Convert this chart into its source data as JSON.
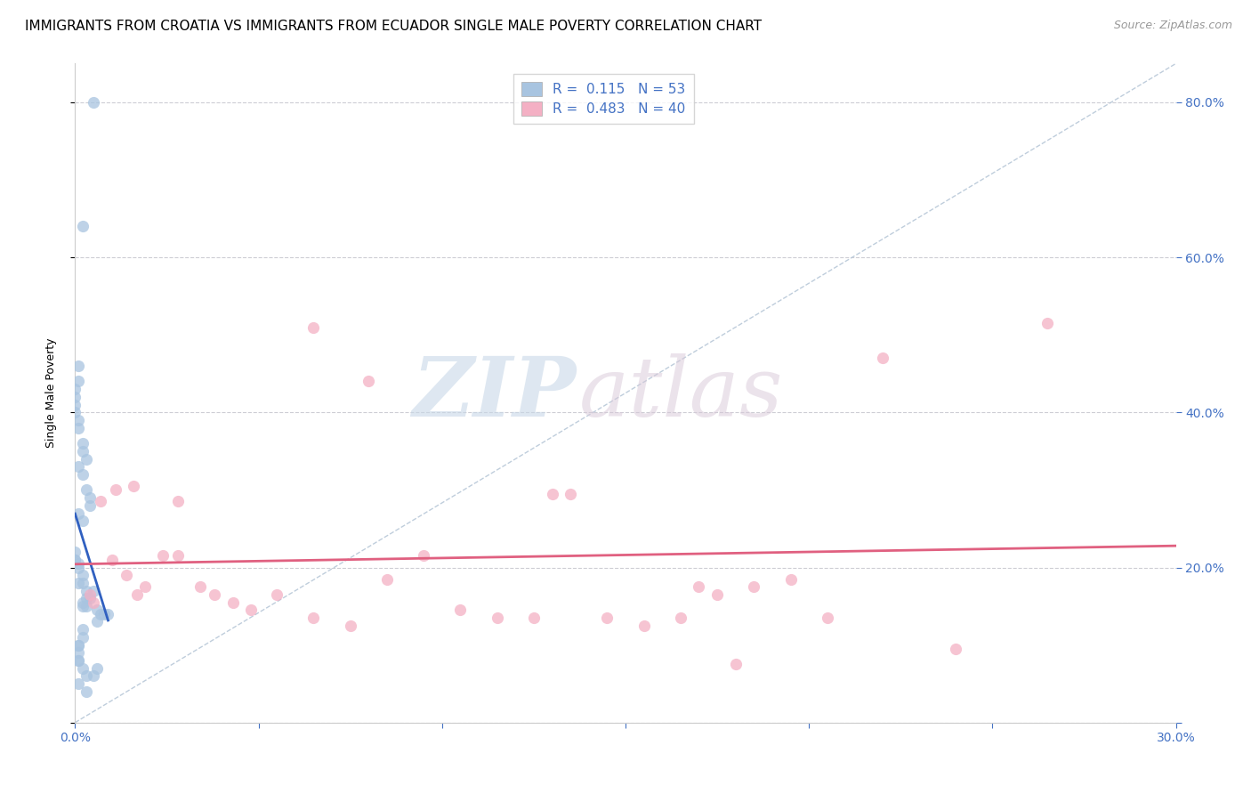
{
  "title": "IMMIGRANTS FROM CROATIA VS IMMIGRANTS FROM ECUADOR SINGLE MALE POVERTY CORRELATION CHART",
  "source": "Source: ZipAtlas.com",
  "ylabel_text": "Single Male Poverty",
  "xlim": [
    0.0,
    0.3
  ],
  "ylim": [
    0.0,
    0.85
  ],
  "x_ticks": [
    0.0,
    0.05,
    0.1,
    0.15,
    0.2,
    0.25,
    0.3
  ],
  "y_ticks": [
    0.0,
    0.2,
    0.4,
    0.6,
    0.8
  ],
  "croatia_R": 0.115,
  "croatia_N": 53,
  "ecuador_R": 0.483,
  "ecuador_N": 40,
  "croatia_color": "#a8c4e0",
  "ecuador_color": "#f4b0c4",
  "croatia_line_color": "#3060c0",
  "ecuador_line_color": "#e06080",
  "diagonal_line_color": "#b8c8d8",
  "croatia_scatter_x": [
    0.005,
    0.002,
    0.001,
    0.001,
    0.0,
    0.0,
    0.0,
    0.0,
    0.001,
    0.001,
    0.002,
    0.002,
    0.003,
    0.001,
    0.002,
    0.003,
    0.004,
    0.004,
    0.001,
    0.002,
    0.0,
    0.0,
    0.0,
    0.001,
    0.001,
    0.002,
    0.001,
    0.002,
    0.003,
    0.005,
    0.004,
    0.003,
    0.002,
    0.002,
    0.003,
    0.006,
    0.007,
    0.008,
    0.009,
    0.006,
    0.002,
    0.002,
    0.001,
    0.001,
    0.001,
    0.001,
    0.001,
    0.002,
    0.006,
    0.005,
    0.003,
    0.001,
    0.003
  ],
  "croatia_scatter_y": [
    0.8,
    0.64,
    0.46,
    0.44,
    0.43,
    0.42,
    0.41,
    0.4,
    0.39,
    0.38,
    0.36,
    0.35,
    0.34,
    0.33,
    0.32,
    0.3,
    0.29,
    0.28,
    0.27,
    0.26,
    0.22,
    0.21,
    0.21,
    0.205,
    0.2,
    0.19,
    0.18,
    0.18,
    0.17,
    0.17,
    0.16,
    0.16,
    0.155,
    0.15,
    0.15,
    0.145,
    0.14,
    0.14,
    0.14,
    0.13,
    0.12,
    0.11,
    0.1,
    0.1,
    0.09,
    0.08,
    0.08,
    0.07,
    0.07,
    0.06,
    0.06,
    0.05,
    0.04
  ],
  "ecuador_scatter_x": [
    0.004,
    0.007,
    0.01,
    0.011,
    0.014,
    0.017,
    0.019,
    0.024,
    0.028,
    0.034,
    0.038,
    0.043,
    0.048,
    0.055,
    0.065,
    0.075,
    0.085,
    0.095,
    0.105,
    0.115,
    0.125,
    0.135,
    0.145,
    0.155,
    0.165,
    0.175,
    0.185,
    0.195,
    0.205,
    0.22,
    0.005,
    0.016,
    0.028,
    0.065,
    0.08,
    0.13,
    0.17,
    0.265,
    0.24,
    0.18
  ],
  "ecuador_scatter_y": [
    0.165,
    0.285,
    0.21,
    0.3,
    0.19,
    0.165,
    0.175,
    0.215,
    0.285,
    0.175,
    0.165,
    0.155,
    0.145,
    0.165,
    0.135,
    0.125,
    0.185,
    0.215,
    0.145,
    0.135,
    0.135,
    0.295,
    0.135,
    0.125,
    0.135,
    0.165,
    0.175,
    0.185,
    0.135,
    0.47,
    0.155,
    0.305,
    0.215,
    0.51,
    0.44,
    0.295,
    0.175,
    0.515,
    0.095,
    0.075
  ],
  "legend_croatia_label": "Immigrants from Croatia",
  "legend_ecuador_label": "Immigrants from Ecuador",
  "watermark_zip": "ZIP",
  "watermark_atlas": "atlas",
  "watermark_color_zip": "#c8d8e8",
  "watermark_color_atlas": "#d8c8d8",
  "title_fontsize": 11,
  "source_fontsize": 9,
  "axis_label_fontsize": 9,
  "tick_fontsize": 10,
  "legend_fontsize": 11,
  "tick_color": "#4472c4"
}
